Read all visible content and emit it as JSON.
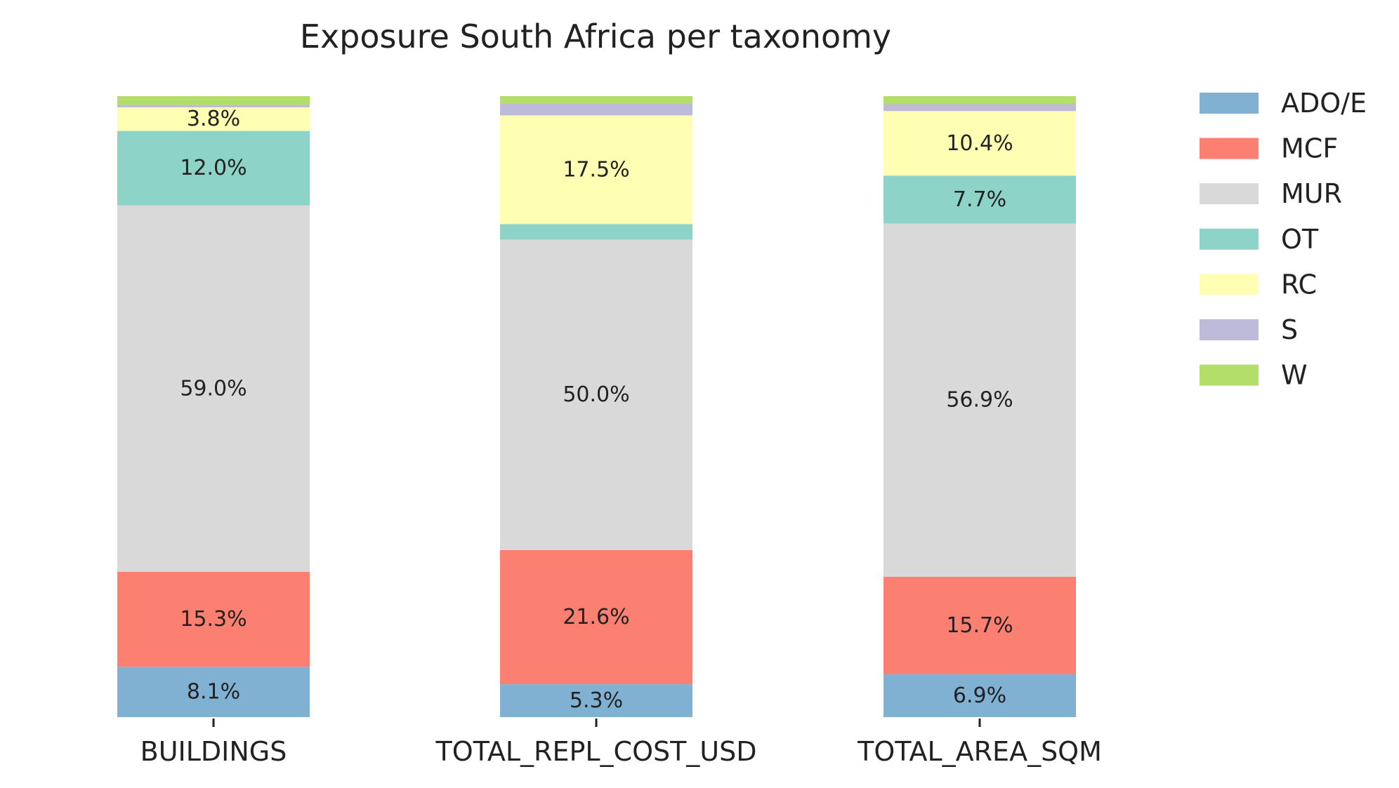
{
  "chart_data": {
    "type": "bar",
    "stacked": true,
    "normalized": true,
    "title": "Exposure South Africa per taxonomy",
    "xlabel": "",
    "ylabel": "",
    "ylim": [
      0,
      100
    ],
    "grid": false,
    "legend_position": "top-right",
    "categories": [
      "BUILDINGS",
      "TOTAL_REPL_COST_USD",
      "TOTAL_AREA_SQM"
    ],
    "series": [
      {
        "name": "ADO/E",
        "color": "#80b1d3",
        "values": [
          8.1,
          5.3,
          6.9
        ],
        "labels": [
          "8.1%",
          "5.3%",
          "6.9%"
        ]
      },
      {
        "name": "MCF",
        "color": "#fb8072",
        "values": [
          15.3,
          21.6,
          15.7
        ],
        "labels": [
          "15.3%",
          "21.6%",
          "15.7%"
        ]
      },
      {
        "name": "MUR",
        "color": "#d9d9d9",
        "values": [
          59.0,
          50.0,
          56.9
        ],
        "labels": [
          "59.0%",
          "50.0%",
          "56.9%"
        ]
      },
      {
        "name": "OT",
        "color": "#8dd3c7",
        "values": [
          12.0,
          2.5,
          7.7
        ],
        "labels": [
          "12.0%",
          "",
          "7.7%"
        ]
      },
      {
        "name": "RC",
        "color": "#ffffb3",
        "values": [
          3.8,
          17.5,
          10.4
        ],
        "labels": [
          "3.8%",
          "17.5%",
          "10.4%"
        ]
      },
      {
        "name": "S",
        "color": "#bebada",
        "values": [
          0.4,
          1.9,
          1.1
        ],
        "labels": [
          "",
          "",
          ""
        ]
      },
      {
        "name": "W",
        "color": "#b3de69",
        "values": [
          1.4,
          1.2,
          1.3
        ],
        "labels": [
          "",
          "",
          ""
        ]
      }
    ]
  }
}
